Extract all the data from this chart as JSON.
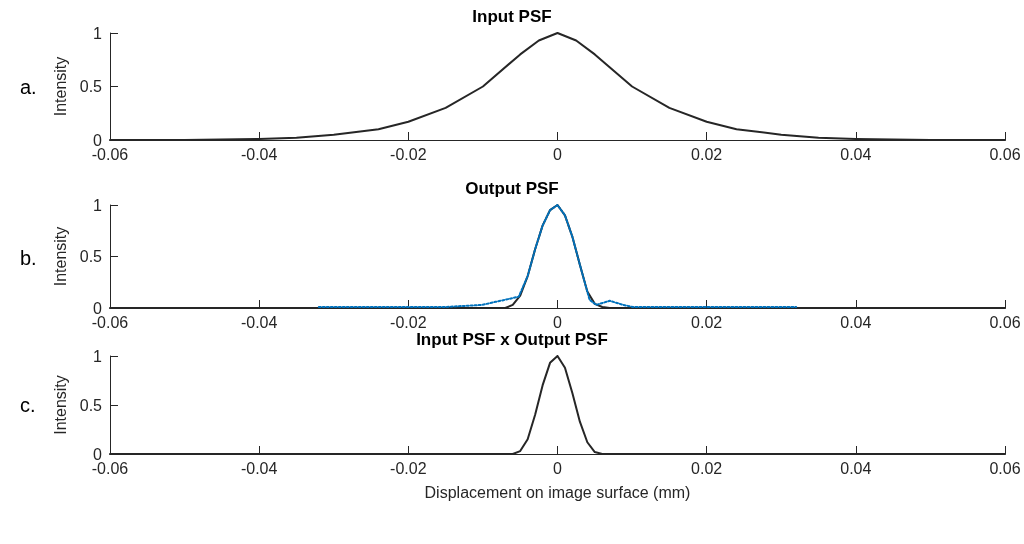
{
  "chart_data": [
    {
      "type": "line",
      "title": "Input PSF",
      "ylabel": "Intensity",
      "annotations": [
        "a."
      ],
      "xlim": [
        -0.06,
        0.06
      ],
      "xticks": [
        -0.06,
        -0.04,
        -0.02,
        0,
        0.02,
        0.04,
        0.06
      ],
      "ylim": [
        0,
        1
      ],
      "yticks": [
        0,
        0.5,
        1
      ],
      "marker": "none",
      "series": [
        {
          "color": "#262626",
          "line_style": "solid",
          "x": [
            -0.06,
            -0.05,
            -0.04,
            -0.035,
            -0.03,
            -0.024,
            -0.02,
            -0.015,
            -0.01,
            -0.005,
            -0.0025,
            0,
            0.0025,
            0.005,
            0.01,
            0.015,
            0.02,
            0.024,
            0.03,
            0.035,
            0.04,
            0.05,
            0.06
          ],
          "values": [
            0,
            0,
            0.01,
            0.02,
            0.05,
            0.1,
            0.17,
            0.3,
            0.5,
            0.8,
            0.93,
            1,
            0.93,
            0.8,
            0.5,
            0.3,
            0.17,
            0.1,
            0.05,
            0.02,
            0.01,
            0,
            0
          ]
        }
      ]
    },
    {
      "type": "line",
      "title": "Output PSF",
      "ylabel": "Intensity",
      "annotations": [
        "b."
      ],
      "xlim": [
        -0.06,
        0.06
      ],
      "xticks": [
        -0.06,
        -0.04,
        -0.02,
        0,
        0.02,
        0.04,
        0.06
      ],
      "ylim": [
        0,
        1
      ],
      "yticks": [
        0,
        0.5,
        1
      ],
      "marker": "none",
      "series": [
        {
          "color": "#0072bd",
          "line_style": "dotted",
          "x": [
            -0.032,
            -0.025,
            -0.015,
            -0.0101,
            -0.0083,
            -0.007,
            -0.0052,
            -0.004,
            -0.003,
            -0.002,
            -0.001,
            0,
            0.001,
            0.002,
            0.003,
            0.0043,
            0.0052,
            0.007,
            0.0088,
            0.0101,
            0.015,
            0.025,
            0.032
          ],
          "values": [
            0.01,
            0.01,
            0.01,
            0.03,
            0.06,
            0.08,
            0.11,
            0.31,
            0.57,
            0.8,
            0.95,
            1,
            0.9,
            0.69,
            0.42,
            0.08,
            0.03,
            0.07,
            0.03,
            0.01,
            0.01,
            0.01,
            0.01
          ]
        },
        {
          "color": "#262626",
          "line_style": "solid",
          "x": [
            -0.06,
            -0.007,
            -0.006,
            -0.005,
            -0.004,
            -0.003,
            -0.002,
            -0.001,
            0,
            0.001,
            0.002,
            0.003,
            0.004,
            0.005,
            0.006,
            0.007,
            0.06
          ],
          "values": [
            0,
            0,
            0.03,
            0.12,
            0.31,
            0.57,
            0.8,
            0.95,
            1,
            0.9,
            0.69,
            0.42,
            0.16,
            0.04,
            0.01,
            0,
            0
          ]
        }
      ]
    },
    {
      "type": "line",
      "title": "Input PSF x Output PSF",
      "xlabel": "Displacement on image surface (mm)",
      "ylabel": "Intensity",
      "annotations": [
        "c."
      ],
      "xlim": [
        -0.06,
        0.06
      ],
      "xticks": [
        -0.06,
        -0.04,
        -0.02,
        0,
        0.02,
        0.04,
        0.06
      ],
      "ylim": [
        0,
        1
      ],
      "yticks": [
        0,
        0.5,
        1
      ],
      "marker": "none",
      "series": [
        {
          "color": "#262626",
          "line_style": "solid",
          "x": [
            -0.06,
            -0.006,
            -0.005,
            -0.004,
            -0.003,
            -0.002,
            -0.001,
            0,
            0.001,
            0.002,
            0.003,
            0.004,
            0.005,
            0.006,
            0.06
          ],
          "values": [
            0,
            0,
            0.03,
            0.15,
            0.4,
            0.7,
            0.93,
            1,
            0.88,
            0.62,
            0.33,
            0.12,
            0.02,
            0,
            0
          ]
        }
      ]
    }
  ]
}
